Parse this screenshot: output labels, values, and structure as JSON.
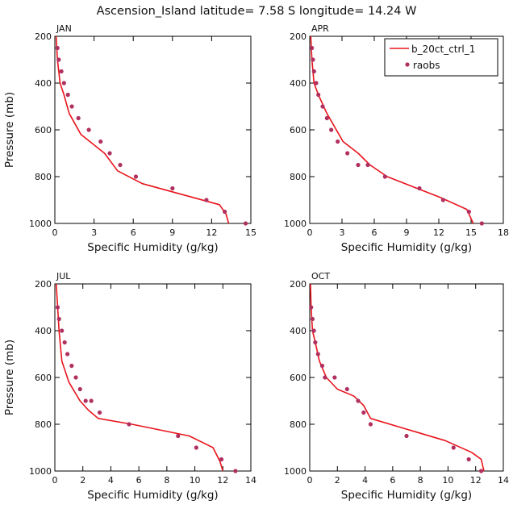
{
  "figure": {
    "title": "Ascension_Island   latitude= 7.58 S longitude= 14.24 W"
  },
  "colors": {
    "model": "#e8141c",
    "obs": "#b03060",
    "axis": "#000000"
  },
  "legend": {
    "model_label": "b_20ct_ctrl_1",
    "obs_label": "raobs"
  },
  "chart_data": [
    {
      "type": "line",
      "panel": "JAN",
      "xlabel": "Specific Humidity (g/kg)",
      "ylabel": "Pressure (mb)",
      "xlim": [
        0,
        15
      ],
      "ylim": [
        1000,
        200
      ],
      "xticks": [
        0,
        3,
        6,
        9,
        12,
        15
      ],
      "yticks": [
        200,
        400,
        600,
        800,
        1000
      ],
      "series": [
        {
          "name": "b_20ct_ctrl_1",
          "type": "line",
          "x": [
            0.1,
            0.2,
            0.4,
            0.7,
            1.1,
            2.0,
            3.8,
            4.8,
            6.7,
            12.6,
            13.1,
            13.3
          ],
          "y": [
            200,
            300,
            400,
            450,
            530,
            620,
            700,
            775,
            830,
            920,
            960,
            1000
          ]
        },
        {
          "name": "raobs",
          "type": "scatter",
          "x": [
            0.2,
            0.3,
            0.5,
            0.7,
            1.0,
            1.3,
            1.8,
            2.6,
            3.5,
            4.2,
            5.0,
            6.2,
            9.0,
            11.6,
            13.0,
            14.6
          ],
          "y": [
            250,
            300,
            350,
            400,
            450,
            500,
            550,
            600,
            650,
            700,
            750,
            800,
            850,
            900,
            950,
            1000
          ]
        }
      ]
    },
    {
      "type": "line",
      "panel": "APR",
      "xlabel": "Specific Humidity (g/kg)",
      "ylabel": "Pressure (mb)",
      "xlim": [
        0,
        18
      ],
      "ylim": [
        1000,
        200
      ],
      "xticks": [
        0,
        3,
        6,
        9,
        12,
        15,
        18
      ],
      "yticks": [
        200,
        400,
        600,
        800,
        1000
      ],
      "series": [
        {
          "name": "b_20ct_ctrl_1",
          "type": "line",
          "x": [
            0.1,
            0.2,
            0.4,
            0.8,
            1.6,
            3.1,
            4.5,
            5.6,
            7.2,
            12.2,
            14.6,
            15.2
          ],
          "y": [
            200,
            300,
            400,
            450,
            530,
            650,
            700,
            750,
            800,
            890,
            940,
            1000
          ]
        },
        {
          "name": "raobs",
          "type": "scatter",
          "x": [
            0.2,
            0.3,
            0.4,
            0.6,
            0.8,
            1.2,
            1.6,
            2.0,
            2.6,
            3.5,
            4.5,
            5.4,
            7.0,
            10.2,
            12.4,
            14.8,
            16.0
          ],
          "y": [
            250,
            300,
            350,
            400,
            450,
            500,
            550,
            600,
            650,
            700,
            750,
            750,
            800,
            850,
            900,
            950,
            1000
          ]
        }
      ]
    },
    {
      "type": "line",
      "panel": "JUL",
      "xlabel": "Specific Humidity (g/kg)",
      "ylabel": "Pressure (mb)",
      "xlim": [
        0,
        14
      ],
      "ylim": [
        1000,
        200
      ],
      "xticks": [
        0,
        2,
        4,
        6,
        8,
        10,
        12,
        14
      ],
      "yticks": [
        200,
        400,
        600,
        800,
        1000
      ],
      "series": [
        {
          "name": "b_20ct_ctrl_1",
          "type": "line",
          "x": [
            0.1,
            0.2,
            0.3,
            0.5,
            1.0,
            1.8,
            2.4,
            3.1,
            5.5,
            9.6,
            11.3,
            11.8,
            12.0
          ],
          "y": [
            200,
            300,
            400,
            530,
            620,
            700,
            740,
            775,
            800,
            850,
            900,
            960,
            1000
          ]
        },
        {
          "name": "raobs",
          "type": "scatter",
          "x": [
            0.2,
            0.3,
            0.5,
            0.7,
            0.9,
            1.2,
            1.5,
            1.8,
            2.2,
            2.6,
            3.2,
            5.3,
            8.8,
            10.1,
            11.9,
            12.9
          ],
          "y": [
            300,
            350,
            400,
            450,
            500,
            550,
            600,
            650,
            700,
            700,
            750,
            800,
            850,
            900,
            950,
            1000
          ]
        }
      ]
    },
    {
      "type": "line",
      "panel": "OCT",
      "xlabel": "Specific Humidity (g/kg)",
      "ylabel": "Pressure (mb)",
      "xlim": [
        0,
        14
      ],
      "ylim": [
        1000,
        200
      ],
      "xticks": [
        0,
        2,
        4,
        6,
        8,
        10,
        12,
        14
      ],
      "yticks": [
        200,
        400,
        600,
        800,
        1000
      ],
      "series": [
        {
          "name": "b_20ct_ctrl_1",
          "type": "line",
          "x": [
            0.05,
            0.1,
            0.2,
            0.4,
            0.7,
            1.2,
            2.0,
            3.2,
            3.9,
            4.4,
            9.8,
            11.7,
            12.4,
            12.6
          ],
          "y": [
            200,
            300,
            400,
            450,
            530,
            600,
            650,
            680,
            720,
            775,
            870,
            920,
            950,
            1000
          ]
        },
        {
          "name": "raobs",
          "type": "scatter",
          "x": [
            0.1,
            0.2,
            0.3,
            0.4,
            0.6,
            0.9,
            1.1,
            1.8,
            2.7,
            3.5,
            3.9,
            4.4,
            7.0,
            10.4,
            11.5,
            12.4
          ],
          "y": [
            300,
            350,
            400,
            450,
            500,
            550,
            600,
            600,
            650,
            700,
            750,
            800,
            850,
            900,
            950,
            1000
          ]
        }
      ]
    }
  ]
}
